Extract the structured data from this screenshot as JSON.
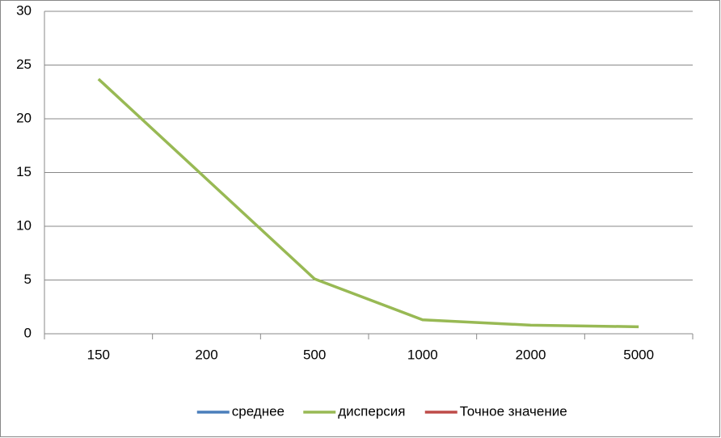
{
  "chart_data": {
    "type": "line",
    "categories": [
      "150",
      "200",
      "500",
      "1000",
      "2000",
      "5000"
    ],
    "series": [
      {
        "name": "среднее",
        "color": "#4a7ebb",
        "values": [
          null,
          null,
          null,
          null,
          null,
          null
        ]
      },
      {
        "name": "дисперсия",
        "color": "#98b954",
        "values": [
          23.7,
          14.4,
          5.1,
          1.3,
          0.8,
          0.65
        ]
      },
      {
        "name": "Точное значение",
        "color": "#be4b48",
        "values": [
          null,
          null,
          null,
          null,
          null,
          null
        ]
      }
    ],
    "ylim": [
      0,
      30
    ],
    "yticks": [
      0,
      5,
      10,
      15,
      20,
      25,
      30
    ],
    "grid": true,
    "legend": "bottom"
  }
}
